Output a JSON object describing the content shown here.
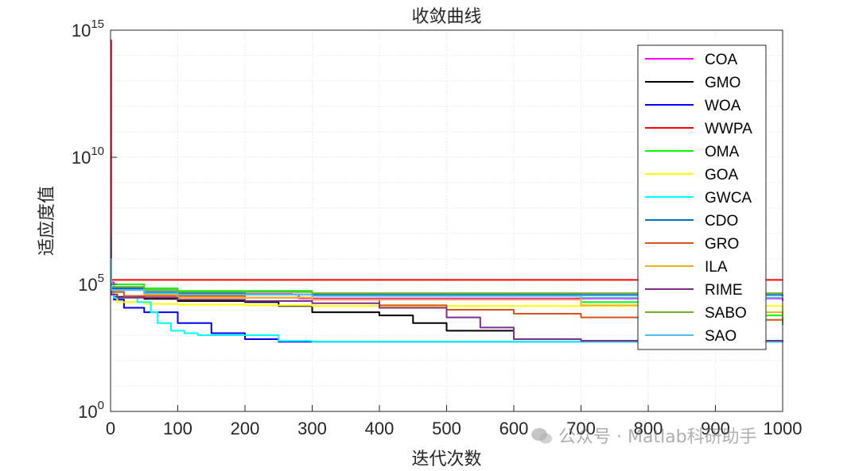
{
  "chart_data": {
    "type": "line",
    "title": "收敛曲线",
    "xlabel": "迭代次数",
    "ylabel": "适应度值",
    "xlim": [
      0,
      1000
    ],
    "ylim": [
      1,
      1000000000000000
    ],
    "yscale": "log",
    "x_ticks": [
      0,
      100,
      200,
      300,
      400,
      500,
      600,
      700,
      800,
      900,
      1000
    ],
    "y_ticks": [
      {
        "base": "10",
        "exp": "0",
        "value": 1
      },
      {
        "base": "10",
        "exp": "5",
        "value": 100000
      },
      {
        "base": "10",
        "exp": "10",
        "value": 10000000000
      },
      {
        "base": "10",
        "exp": "15",
        "value": 1000000000000000
      }
    ],
    "grid": true,
    "legend_position": "top-right",
    "series": [
      {
        "name": "COA",
        "color": "#ff00ff",
        "x": [
          0,
          1,
          5,
          50,
          100,
          270,
          280,
          1000
        ],
        "y": [
          5000000.0,
          120000,
          60000,
          45000,
          42000,
          40000,
          28000,
          22000
        ]
      },
      {
        "name": "GMO",
        "color": "#000000",
        "x": [
          0,
          1,
          5,
          50,
          100,
          200,
          250,
          300,
          400,
          450,
          500,
          600,
          700,
          1000
        ],
        "y": [
          1000000.0,
          60000,
          32000,
          27000,
          22000,
          20000,
          14000,
          8000,
          6000,
          3000,
          1500,
          700,
          600,
          550
        ]
      },
      {
        "name": "WOA",
        "color": "#0000ff",
        "x": [
          0,
          1,
          5,
          20,
          50,
          100,
          150,
          200,
          250,
          1000
        ],
        "y": [
          5000000.0,
          40000,
          25000,
          12000,
          8000,
          3000,
          1200,
          700,
          550,
          550
        ]
      },
      {
        "name": "WWPA",
        "color": "#ff0000",
        "x": [
          0,
          1,
          5,
          1000
        ],
        "y": [
          400000000000000.0,
          150000,
          150000,
          150000
        ]
      },
      {
        "name": "OMA",
        "color": "#00ff00",
        "x": [
          0,
          1,
          50,
          100,
          300,
          700,
          800,
          1000
        ],
        "y": [
          2000000.0,
          100000,
          70000,
          55000,
          40000,
          20000,
          6000,
          2500
        ]
      },
      {
        "name": "GOA",
        "color": "#ffff00",
        "x": [
          0,
          1,
          10,
          50,
          100,
          200,
          300,
          1000
        ],
        "y": [
          1000000.0,
          50000,
          20000,
          17000,
          16000,
          15000,
          14000,
          6000
        ]
      },
      {
        "name": "GWCA",
        "color": "#00ffff",
        "x": [
          0,
          1,
          5,
          40,
          60,
          70,
          90,
          110,
          130,
          160,
          200,
          250,
          300,
          1000
        ],
        "y": [
          5000000.0,
          100000,
          30000,
          20000,
          8000,
          3000,
          1500,
          1200,
          1000,
          1000,
          1000,
          600,
          550,
          550
        ]
      },
      {
        "name": "CDO",
        "color": "#0072bd",
        "x": [
          0,
          1,
          50,
          100,
          200,
          300,
          1000
        ],
        "y": [
          2000000.0,
          70000,
          50000,
          45000,
          40000,
          38000,
          35000
        ]
      },
      {
        "name": "GRO",
        "color": "#d95319",
        "x": [
          0,
          1,
          20,
          200,
          300,
          400,
          500,
          600,
          700,
          800,
          1000
        ],
        "y": [
          1000000.0,
          50000,
          35000,
          30000,
          25000,
          15000,
          10000,
          7000,
          5000,
          4000,
          3500
        ]
      },
      {
        "name": "ILA",
        "color": "#edb120",
        "x": [
          0,
          1,
          50,
          100,
          300,
          700,
          900,
          1000
        ],
        "y": [
          1000000.0,
          60000,
          40000,
          30000,
          25000,
          15000,
          8000,
          5000
        ]
      },
      {
        "name": "RIME",
        "color": "#7e2f8e",
        "x": [
          0,
          1,
          10,
          100,
          200,
          300,
          400,
          500,
          550,
          600,
          700,
          1000
        ],
        "y": [
          10000000.0,
          40000,
          30000,
          25000,
          22000,
          18000,
          12000,
          5000,
          2000,
          700,
          600,
          550
        ]
      },
      {
        "name": "SABO",
        "color": "#77ac30",
        "x": [
          0,
          1,
          50,
          100,
          300,
          800,
          1000
        ],
        "y": [
          1000000.0,
          80000,
          60000,
          50000,
          45000,
          45000,
          45000
        ]
      },
      {
        "name": "SAO",
        "color": "#4dbeee",
        "x": [
          0,
          1,
          50,
          100,
          300,
          700,
          1000
        ],
        "y": [
          1000000.0,
          60000,
          45000,
          40000,
          35000,
          30000,
          30000
        ]
      }
    ]
  },
  "watermark": {
    "text": "公众号 · Matlab科研助手",
    "icon": "wechat-icon"
  }
}
